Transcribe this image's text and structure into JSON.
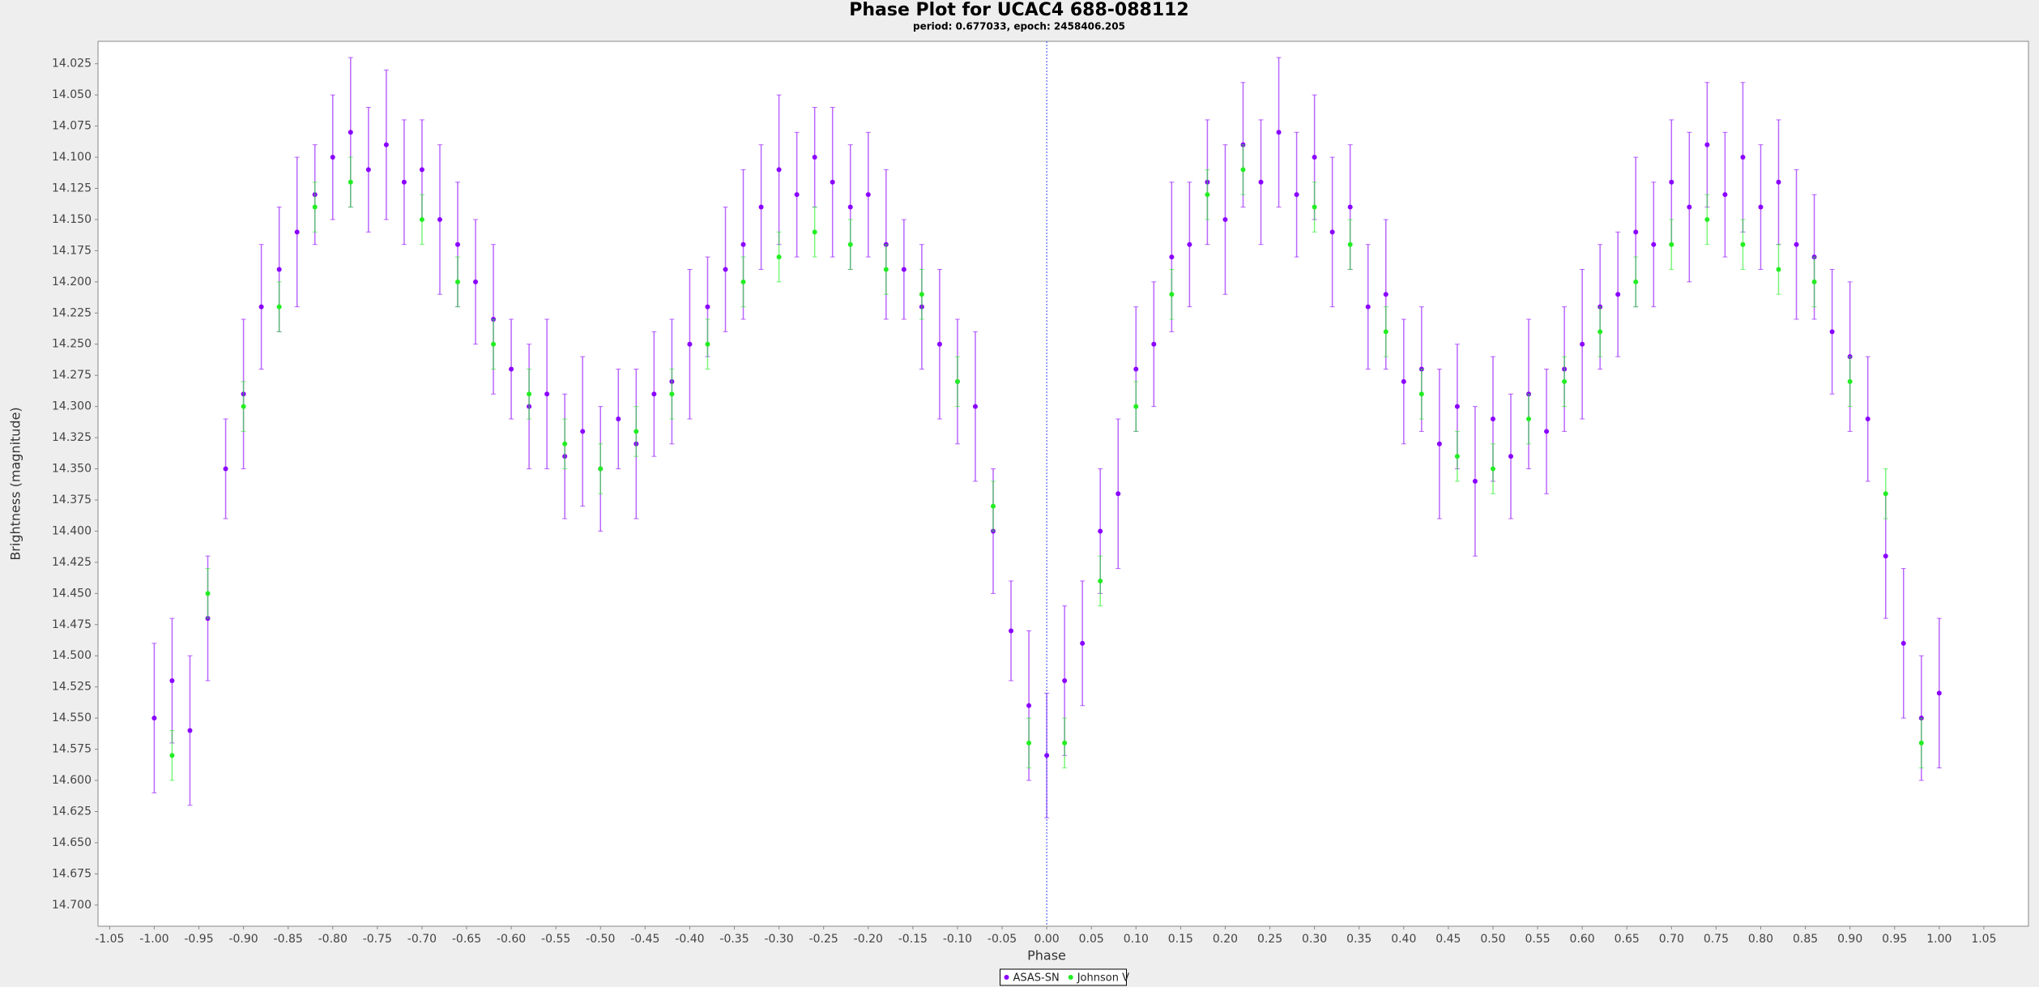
{
  "chart_data": {
    "type": "scatter",
    "title": "Phase Plot for UCAC4 688-088112",
    "subtitle": "period: 0.677033, epoch: 2458406.205",
    "x_label": "Phase",
    "y_label": "Brightness (magnitude)",
    "xlim": [
      -1.063,
      1.1
    ],
    "ylim": [
      14.007,
      14.717
    ],
    "y_inverted": true,
    "grid": false,
    "legend": "bottom",
    "crosshair_x": 0,
    "xticks": [
      -1.05,
      {
        "value": -1,
        "label": "-1.00"
      },
      -0.95,
      {
        "value": -0.9,
        "label": "-0.90"
      },
      -0.85,
      {
        "value": -0.8,
        "label": "-0.80"
      },
      -0.75,
      {
        "value": -0.7,
        "label": "-0.70"
      },
      -0.65,
      {
        "value": -0.6,
        "label": "-0.60"
      },
      -0.55,
      {
        "value": -0.5,
        "label": "-0.50"
      },
      -0.45,
      {
        "value": -0.4,
        "label": "-0.40"
      },
      -0.35,
      {
        "value": -0.3,
        "label": "-0.30"
      },
      -0.25,
      {
        "value": -0.2,
        "label": "-0.20"
      },
      -0.15,
      {
        "value": -0.1,
        "label": "-0.10"
      },
      -0.05,
      {
        "value": 0,
        "label": "0.00"
      },
      0.05,
      {
        "value": 0.1,
        "label": "0.10"
      },
      0.15,
      {
        "value": 0.2,
        "label": "0.20"
      },
      0.25,
      {
        "value": 0.3,
        "label": "0.30"
      },
      0.35,
      {
        "value": 0.4,
        "label": "0.40"
      },
      0.45,
      {
        "value": 0.5,
        "label": "0.50"
      },
      0.55,
      {
        "value": 0.6,
        "label": "0.60"
      },
      0.65,
      {
        "value": 0.7,
        "label": "0.70"
      },
      0.75,
      {
        "value": 0.8,
        "label": "0.80"
      },
      0.85,
      {
        "value": 0.9,
        "label": "0.90"
      },
      0.95,
      {
        "value": 1,
        "label": "1.00"
      },
      1.05
    ],
    "yticks": [
      14.025,
      {
        "value": 14.05,
        "label": "14.050"
      },
      14.075,
      {
        "value": 14.1,
        "label": "14.100"
      },
      14.125,
      {
        "value": 14.15,
        "label": "14.150"
      },
      14.175,
      {
        "value": 14.2,
        "label": "14.200"
      },
      14.225,
      {
        "value": 14.25,
        "label": "14.250"
      },
      14.275,
      {
        "value": 14.3,
        "label": "14.300"
      },
      14.325,
      {
        "value": 14.35,
        "label": "14.350"
      },
      14.375,
      {
        "value": 14.4,
        "label": "14.400"
      },
      14.425,
      {
        "value": 14.45,
        "label": "14.450"
      },
      14.475,
      {
        "value": 14.5,
        "label": "14.500"
      },
      14.525,
      {
        "value": 14.55,
        "label": "14.550"
      },
      14.575,
      {
        "value": 14.6,
        "label": "14.600"
      },
      14.625,
      {
        "value": 14.65,
        "label": "14.650"
      },
      14.675,
      {
        "value": 14.7,
        "label": "14.700"
      }
    ],
    "series": [
      {
        "name": "ASAS-SN",
        "color": "#8a00ff",
        "x": [
          -1.0,
          -0.98,
          -0.96,
          -0.94,
          -0.92,
          -0.9,
          -0.88,
          -0.86,
          -0.84,
          -0.82,
          -0.8,
          -0.78,
          -0.76,
          -0.74,
          -0.72,
          -0.7,
          -0.68,
          -0.66,
          -0.64,
          -0.62,
          -0.6,
          -0.58,
          -0.56,
          -0.54,
          -0.52,
          -0.5,
          -0.48,
          -0.46,
          -0.44,
          -0.42,
          -0.4,
          -0.38,
          -0.36,
          -0.34,
          -0.32,
          -0.3,
          -0.28,
          -0.26,
          -0.24,
          -0.22,
          -0.2,
          -0.18,
          -0.16,
          -0.14,
          -0.12,
          -0.1,
          -0.08,
          -0.06,
          -0.04,
          -0.02,
          0.0,
          0.02,
          0.04,
          0.06,
          0.08,
          0.1,
          0.12,
          0.14,
          0.16,
          0.18,
          0.2,
          0.22,
          0.24,
          0.26,
          0.28,
          0.3,
          0.32,
          0.34,
          0.36,
          0.38,
          0.4,
          0.42,
          0.44,
          0.46,
          0.48,
          0.5,
          0.52,
          0.54,
          0.56,
          0.58,
          0.6,
          0.62,
          0.64,
          0.66,
          0.68,
          0.7,
          0.72,
          0.74,
          0.76,
          0.78,
          0.8,
          0.82,
          0.84,
          0.86,
          0.88,
          0.9,
          0.92,
          0.94,
          0.96,
          0.98,
          1.0
        ],
        "values": [
          14.55,
          14.52,
          14.56,
          14.47,
          14.35,
          14.29,
          14.22,
          14.19,
          14.16,
          14.13,
          14.1,
          14.08,
          14.11,
          14.09,
          14.12,
          14.11,
          14.15,
          14.17,
          14.2,
          14.23,
          14.27,
          14.3,
          14.29,
          14.34,
          14.32,
          14.35,
          14.31,
          14.33,
          14.29,
          14.28,
          14.25,
          14.22,
          14.19,
          14.17,
          14.14,
          14.11,
          14.13,
          14.1,
          14.12,
          14.14,
          14.13,
          14.17,
          14.19,
          14.22,
          14.25,
          14.28,
          14.3,
          14.4,
          14.48,
          14.54,
          14.58,
          14.52,
          14.49,
          14.4,
          14.37,
          14.27,
          14.25,
          14.18,
          14.17,
          14.12,
          14.15,
          14.09,
          14.12,
          14.08,
          14.13,
          14.1,
          14.16,
          14.14,
          14.22,
          14.21,
          14.28,
          14.27,
          14.33,
          14.3,
          14.36,
          14.31,
          14.34,
          14.29,
          14.32,
          14.27,
          14.25,
          14.22,
          14.21,
          14.16,
          14.17,
          14.12,
          14.14,
          14.09,
          14.13,
          14.1,
          14.14,
          14.12,
          14.17,
          14.18,
          14.24,
          14.26,
          14.31,
          14.42,
          14.49,
          14.55,
          14.53
        ],
        "errors": [
          0.06,
          0.05,
          0.06,
          0.05,
          0.04,
          0.06,
          0.05,
          0.05,
          0.06,
          0.04,
          0.05,
          0.06,
          0.05,
          0.06,
          0.05,
          0.04,
          0.06,
          0.05,
          0.05,
          0.06,
          0.04,
          0.05,
          0.06,
          0.05,
          0.06,
          0.05,
          0.04,
          0.06,
          0.05,
          0.05,
          0.06,
          0.04,
          0.05,
          0.06,
          0.05,
          0.06,
          0.05,
          0.04,
          0.06,
          0.05,
          0.05,
          0.06,
          0.04,
          0.05,
          0.06,
          0.05,
          0.06,
          0.05,
          0.04,
          0.06,
          0.05,
          0.06,
          0.05,
          0.05,
          0.06,
          0.05,
          0.05,
          0.06,
          0.05,
          0.05,
          0.06,
          0.05,
          0.05,
          0.06,
          0.05,
          0.05,
          0.06,
          0.05,
          0.05,
          0.06,
          0.05,
          0.05,
          0.06,
          0.05,
          0.06,
          0.05,
          0.05,
          0.06,
          0.05,
          0.05,
          0.06,
          0.05,
          0.05,
          0.06,
          0.05,
          0.05,
          0.06,
          0.05,
          0.05,
          0.06,
          0.05,
          0.05,
          0.06,
          0.05,
          0.05,
          0.06,
          0.05,
          0.05,
          0.06,
          0.05,
          0.06
        ]
      },
      {
        "name": "Johnson V",
        "color": "#22ee22",
        "x": [
          -0.98,
          -0.94,
          -0.9,
          -0.86,
          -0.82,
          -0.78,
          -0.7,
          -0.66,
          -0.62,
          -0.58,
          -0.54,
          -0.5,
          -0.46,
          -0.42,
          -0.38,
          -0.34,
          -0.3,
          -0.26,
          -0.22,
          -0.18,
          -0.14,
          -0.1,
          -0.06,
          -0.02,
          0.02,
          0.06,
          0.1,
          0.14,
          0.18,
          0.22,
          0.3,
          0.34,
          0.38,
          0.42,
          0.46,
          0.5,
          0.54,
          0.58,
          0.62,
          0.66,
          0.7,
          0.74,
          0.78,
          0.82,
          0.86,
          0.9,
          0.94,
          0.98
        ],
        "values": [
          14.58,
          14.45,
          14.3,
          14.22,
          14.14,
          14.12,
          14.15,
          14.2,
          14.25,
          14.29,
          14.33,
          14.35,
          14.32,
          14.29,
          14.25,
          14.2,
          14.18,
          14.16,
          14.17,
          14.19,
          14.21,
          14.28,
          14.38,
          14.57,
          14.57,
          14.44,
          14.3,
          14.21,
          14.13,
          14.11,
          14.14,
          14.17,
          14.24,
          14.29,
          14.34,
          14.35,
          14.31,
          14.28,
          14.24,
          14.2,
          14.17,
          14.15,
          14.17,
          14.19,
          14.2,
          14.28,
          14.37,
          14.57
        ],
        "errors": [
          0.02,
          0.02,
          0.02,
          0.02,
          0.02,
          0.02,
          0.02,
          0.02,
          0.02,
          0.02,
          0.02,
          0.02,
          0.02,
          0.02,
          0.02,
          0.02,
          0.02,
          0.02,
          0.02,
          0.02,
          0.02,
          0.02,
          0.02,
          0.02,
          0.02,
          0.02,
          0.02,
          0.02,
          0.02,
          0.02,
          0.02,
          0.02,
          0.02,
          0.02,
          0.02,
          0.02,
          0.02,
          0.02,
          0.02,
          0.02,
          0.02,
          0.02,
          0.02,
          0.02,
          0.02,
          0.02,
          0.02,
          0.02
        ]
      }
    ]
  }
}
